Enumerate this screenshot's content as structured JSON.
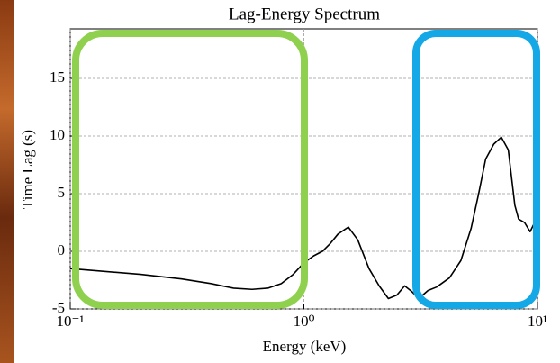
{
  "chart_data": {
    "type": "line",
    "title": "Lag-Energy Spectrum",
    "x_label": "Energy (keV)",
    "y_label": "Time Lag (s)",
    "x": [
      0.1,
      0.2,
      0.3,
      0.4,
      0.5,
      0.6,
      0.7,
      0.8,
      0.9,
      1.0,
      1.1,
      1.2,
      1.3,
      1.4,
      1.55,
      1.7,
      1.9,
      2.1,
      2.3,
      2.5,
      2.7,
      2.9,
      3.1,
      3.4,
      3.7,
      4.2,
      4.7,
      5.2,
      5.6,
      6.0,
      6.5,
      7.0,
      7.5,
      8.0,
      8.3,
      8.8,
      9.3,
      10
    ],
    "values": [
      -1.5,
      -2.0,
      -2.4,
      -2.8,
      -3.2,
      -3.3,
      -3.2,
      -2.8,
      -2.0,
      -1.0,
      -0.4,
      0.0,
      0.7,
      1.5,
      2.1,
      1.0,
      -1.5,
      -3.0,
      -4.1,
      -3.8,
      -3.0,
      -3.5,
      -4.1,
      -3.4,
      -3.1,
      -2.3,
      -0.8,
      2.0,
      5.0,
      8.0,
      9.3,
      9.9,
      8.8,
      4.0,
      2.8,
      2.5,
      1.7,
      3.0
    ],
    "color": "#000000",
    "x_log": true,
    "grid": true,
    "xlim": [
      0.1,
      10
    ],
    "xticks": [
      {
        "value": 0.1,
        "label": "10⁻¹"
      },
      {
        "value": 1,
        "label": "10⁰"
      },
      {
        "value": 10,
        "label": "10¹"
      }
    ],
    "ylim": [
      -5,
      19.3
    ],
    "yticks": [
      -5,
      0,
      5,
      10,
      15
    ]
  }
}
